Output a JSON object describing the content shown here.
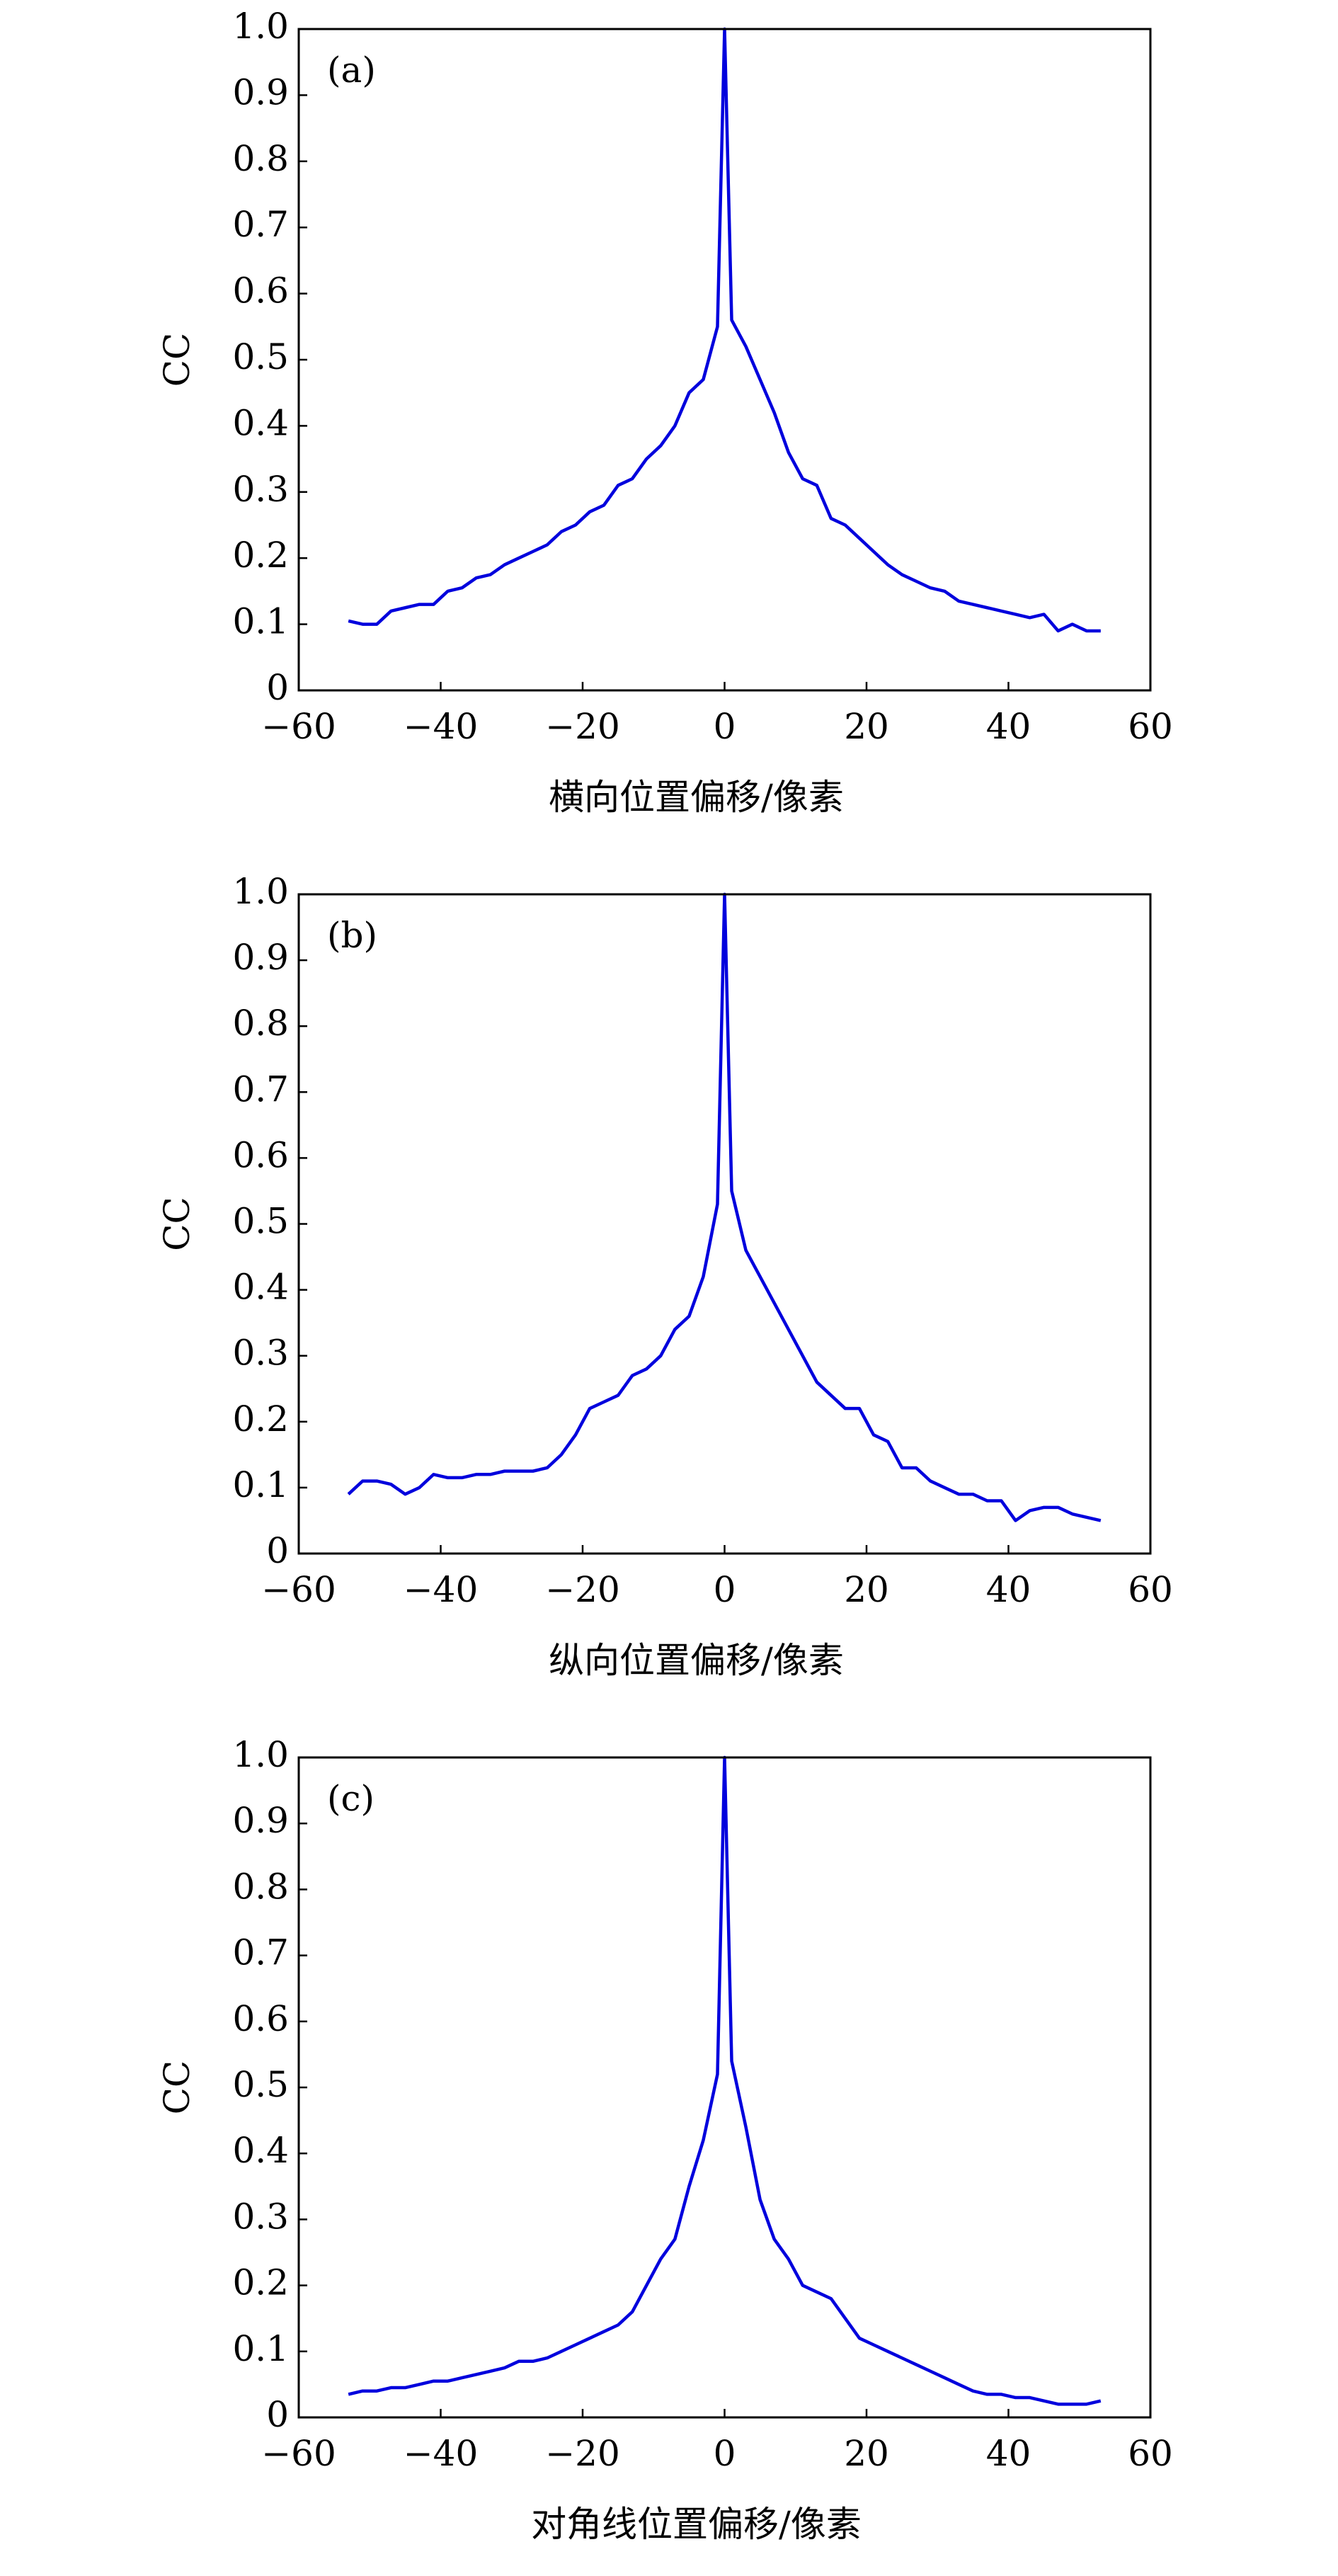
{
  "chart_data": [
    {
      "type": "line",
      "annotation": "(a)",
      "xlabel": "横向位置偏移/像素",
      "ylabel": "CC",
      "x": [
        -53,
        -51,
        -49,
        -47,
        -45,
        -43,
        -41,
        -39,
        -37,
        -35,
        -33,
        -31,
        -29,
        -27,
        -25,
        -23,
        -21,
        -19,
        -17,
        -15,
        -13,
        -11,
        -9,
        -7,
        -5,
        -3,
        -1,
        0,
        1,
        3,
        5,
        7,
        9,
        11,
        13,
        15,
        17,
        19,
        21,
        23,
        25,
        27,
        29,
        31,
        33,
        35,
        37,
        39,
        41,
        43,
        45,
        47,
        49,
        51,
        53
      ],
      "series": [
        {
          "color": "#0000dd",
          "values": [
            0.105,
            0.1,
            0.1,
            0.12,
            0.125,
            0.13,
            0.13,
            0.15,
            0.155,
            0.17,
            0.175,
            0.19,
            0.2,
            0.21,
            0.22,
            0.24,
            0.25,
            0.27,
            0.28,
            0.31,
            0.32,
            0.35,
            0.37,
            0.4,
            0.45,
            0.47,
            0.55,
            1.0,
            0.56,
            0.52,
            0.47,
            0.42,
            0.36,
            0.32,
            0.31,
            0.26,
            0.25,
            0.23,
            0.21,
            0.19,
            0.175,
            0.165,
            0.155,
            0.15,
            0.135,
            0.13,
            0.125,
            0.12,
            0.115,
            0.11,
            0.115,
            0.09,
            0.1,
            0.09,
            0.09
          ]
        }
      ],
      "xlim": [
        -60,
        60
      ],
      "xticks": [
        {
          "value": -60,
          "label": "−60"
        },
        {
          "value": -40,
          "label": "−40"
        },
        {
          "value": -20,
          "label": "−20"
        },
        0,
        20,
        40,
        60
      ],
      "ylim": [
        0,
        1
      ],
      "yticks": [
        0,
        0.1,
        0.2,
        0.3,
        0.4,
        0.5,
        0.6,
        0.7,
        0.8,
        0.9,
        {
          "value": 1,
          "label": "1.0"
        }
      ]
    },
    {
      "type": "line",
      "annotation": "(b)",
      "xlabel": "纵向位置偏移/像素",
      "ylabel": "CC",
      "x": [
        -53,
        -51,
        -49,
        -47,
        -45,
        -43,
        -41,
        -39,
        -37,
        -35,
        -33,
        -31,
        -29,
        -27,
        -25,
        -23,
        -21,
        -19,
        -17,
        -15,
        -13,
        -11,
        -9,
        -7,
        -5,
        -3,
        -1,
        0,
        1,
        3,
        5,
        7,
        9,
        11,
        13,
        15,
        17,
        19,
        21,
        23,
        25,
        27,
        29,
        31,
        33,
        35,
        37,
        39,
        41,
        43,
        45,
        47,
        49,
        51,
        53
      ],
      "series": [
        {
          "color": "#0000dd",
          "values": [
            0.09,
            0.11,
            0.11,
            0.105,
            0.09,
            0.1,
            0.12,
            0.115,
            0.115,
            0.12,
            0.12,
            0.125,
            0.125,
            0.125,
            0.13,
            0.15,
            0.18,
            0.22,
            0.23,
            0.24,
            0.27,
            0.28,
            0.3,
            0.34,
            0.36,
            0.42,
            0.53,
            1.0,
            0.55,
            0.46,
            0.42,
            0.38,
            0.34,
            0.3,
            0.26,
            0.24,
            0.22,
            0.22,
            0.18,
            0.17,
            0.13,
            0.13,
            0.11,
            0.1,
            0.09,
            0.09,
            0.08,
            0.08,
            0.05,
            0.065,
            0.07,
            0.07,
            0.06,
            0.055,
            0.05
          ]
        }
      ],
      "xlim": [
        -60,
        60
      ],
      "xticks": [
        {
          "value": -60,
          "label": "−60"
        },
        {
          "value": -40,
          "label": "−40"
        },
        {
          "value": -20,
          "label": "−20"
        },
        0,
        20,
        40,
        60
      ],
      "ylim": [
        0,
        1
      ],
      "yticks": [
        0,
        0.1,
        0.2,
        0.3,
        0.4,
        0.5,
        0.6,
        0.7,
        0.8,
        0.9,
        {
          "value": 1,
          "label": "1.0"
        }
      ]
    },
    {
      "type": "line",
      "annotation": "(c)",
      "xlabel": "对角线位置偏移/像素",
      "ylabel": "CC",
      "x": [
        -53,
        -51,
        -49,
        -47,
        -45,
        -43,
        -41,
        -39,
        -37,
        -35,
        -33,
        -31,
        -29,
        -27,
        -25,
        -23,
        -21,
        -19,
        -17,
        -15,
        -13,
        -11,
        -9,
        -7,
        -5,
        -3,
        -1,
        0,
        1,
        3,
        5,
        7,
        9,
        11,
        13,
        15,
        17,
        19,
        21,
        23,
        25,
        27,
        29,
        31,
        33,
        35,
        37,
        39,
        41,
        43,
        45,
        47,
        49,
        51,
        53
      ],
      "series": [
        {
          "color": "#0000dd",
          "values": [
            0.035,
            0.04,
            0.04,
            0.045,
            0.045,
            0.05,
            0.055,
            0.055,
            0.06,
            0.065,
            0.07,
            0.075,
            0.085,
            0.085,
            0.09,
            0.1,
            0.11,
            0.12,
            0.13,
            0.14,
            0.16,
            0.2,
            0.24,
            0.27,
            0.35,
            0.42,
            0.52,
            1.0,
            0.54,
            0.44,
            0.33,
            0.27,
            0.24,
            0.2,
            0.19,
            0.18,
            0.15,
            0.12,
            0.11,
            0.1,
            0.09,
            0.08,
            0.07,
            0.06,
            0.05,
            0.04,
            0.035,
            0.035,
            0.03,
            0.03,
            0.025,
            0.02,
            0.02,
            0.02,
            0.025
          ]
        }
      ],
      "xlim": [
        -60,
        60
      ],
      "xticks": [
        {
          "value": -60,
          "label": "−60"
        },
        {
          "value": -40,
          "label": "−40"
        },
        {
          "value": -20,
          "label": "−20"
        },
        0,
        20,
        40,
        60
      ],
      "ylim": [
        0,
        1
      ],
      "yticks": [
        0,
        0.1,
        0.2,
        0.3,
        0.4,
        0.5,
        0.6,
        0.7,
        0.8,
        0.9,
        {
          "value": 1,
          "label": "1.0"
        }
      ]
    }
  ]
}
